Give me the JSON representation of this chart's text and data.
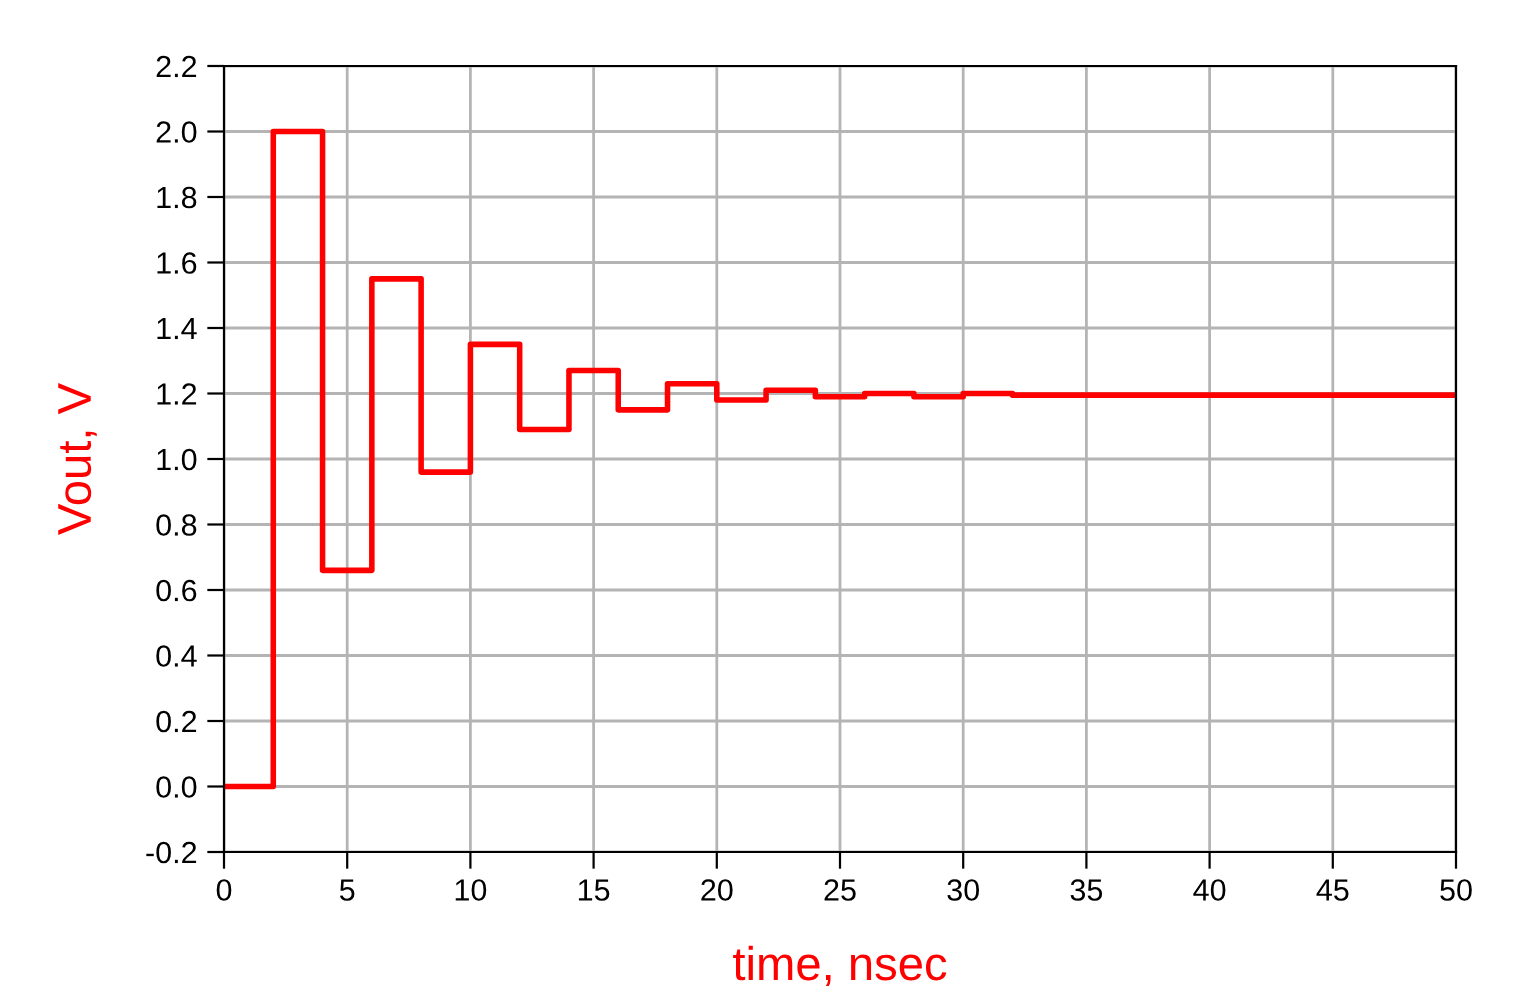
{
  "chart_data": {
    "type": "step",
    "xlabel": "time, nsec",
    "ylabel": "Vout, V",
    "x": [
      0,
      2,
      4,
      6,
      8,
      10,
      12,
      14,
      16,
      18,
      20,
      22,
      24,
      26,
      28,
      30,
      32,
      50
    ],
    "series": [
      {
        "color": "#ff0000",
        "values": [
          0,
          2.0,
          0.66,
          1.55,
          0.96,
          1.35,
          1.09,
          1.27,
          1.15,
          1.23,
          1.18,
          1.21,
          1.19,
          1.2,
          1.19,
          1.2,
          1.195,
          1.195
        ]
      }
    ],
    "xlim": [
      0,
      50
    ],
    "xticks": [
      0,
      5,
      10,
      15,
      20,
      25,
      30,
      35,
      40,
      45,
      50
    ],
    "ylim": [
      -0.2,
      2.2
    ],
    "yticks": [
      -0.2,
      {
        "value": 0,
        "label": "0.0"
      },
      0.2,
      0.4,
      0.6,
      0.8,
      {
        "value": 1,
        "label": "1.0"
      },
      1.2,
      1.4,
      1.6,
      1.8,
      {
        "value": 2,
        "label": "2.0"
      },
      2.2
    ],
    "grid": true,
    "line_style": "solid",
    "marker": "none"
  }
}
